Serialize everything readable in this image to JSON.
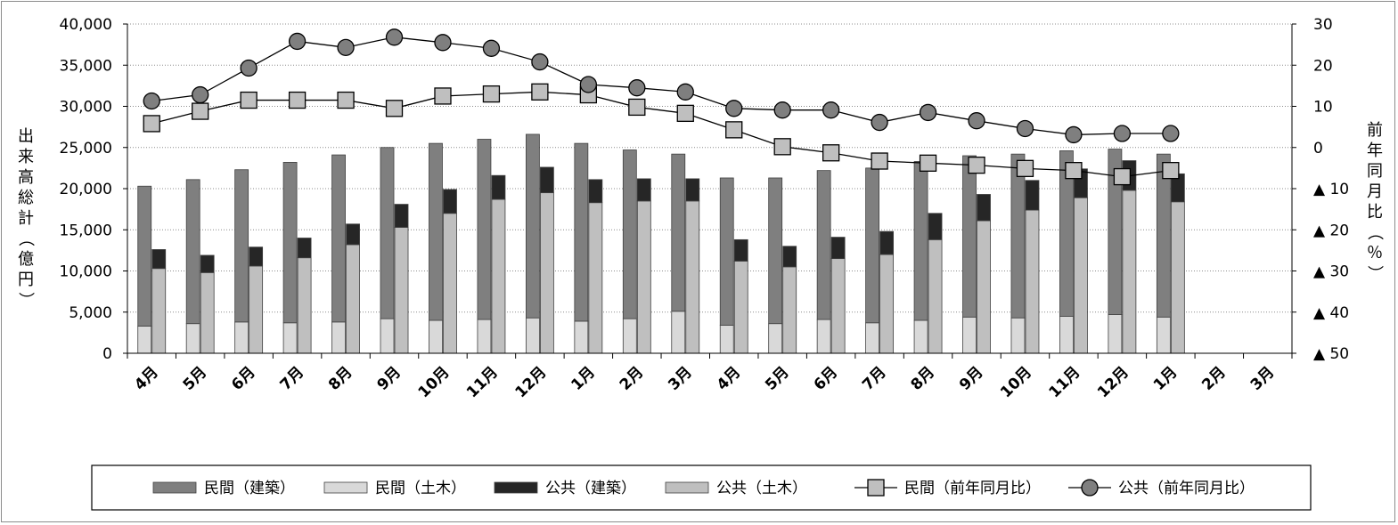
{
  "chart_data": {
    "type": "bar",
    "categories": [
      "4月",
      "5月",
      "6月",
      "7月",
      "8月",
      "9月",
      "10月",
      "11月",
      "12月",
      "1月",
      "2月",
      "3月",
      "4月",
      "5月",
      "6月",
      "7月",
      "8月",
      "9月",
      "10月",
      "11月",
      "12月",
      "1月",
      "2月",
      "3月"
    ],
    "left_axis": {
      "label": "出来高総計（億円）",
      "ylim": [
        0,
        40000
      ],
      "ticks": [
        0,
        5000,
        10000,
        15000,
        20000,
        25000,
        30000,
        35000,
        40000
      ],
      "tick_labels": [
        "0",
        "5,000",
        "10,000",
        "15,000",
        "20,000",
        "25,000",
        "30,000",
        "35,000",
        "40,000"
      ]
    },
    "right_axis": {
      "label": "前年同月比（％）",
      "ylim": [
        -50,
        30
      ],
      "ticks": [
        30,
        20,
        10,
        0,
        -10,
        -20,
        -30,
        -40,
        -50
      ],
      "tick_labels": [
        "30",
        "20",
        "10",
        "0",
        "▲ 10",
        "▲ 20",
        "▲ 30",
        "▲ 40",
        "▲ 50"
      ]
    },
    "series": [
      {
        "name": "民間（建築）",
        "type": "stacked-bar",
        "stack": "private",
        "color": "#7f7f7f",
        "values": [
          17000,
          17500,
          18500,
          19500,
          20300,
          20800,
          21500,
          21900,
          22300,
          21600,
          20500,
          19100,
          17900,
          17700,
          18100,
          18800,
          19300,
          19600,
          19900,
          20100,
          20100,
          19800,
          null,
          null
        ]
      },
      {
        "name": "民間（土木）",
        "type": "stacked-bar",
        "stack": "private",
        "color": "#d9d9d9",
        "values": [
          3300,
          3600,
          3800,
          3700,
          3800,
          4200,
          4000,
          4100,
          4300,
          3900,
          4200,
          5100,
          3400,
          3600,
          4100,
          3700,
          4000,
          4400,
          4300,
          4500,
          4700,
          4400,
          null,
          null
        ]
      },
      {
        "name": "公共（建築）",
        "type": "stacked-bar",
        "stack": "public",
        "color": "#262626",
        "values": [
          2300,
          2100,
          2300,
          2400,
          2500,
          2800,
          2900,
          2900,
          3100,
          2800,
          2700,
          2700,
          2600,
          2500,
          2600,
          2800,
          3200,
          3200,
          3600,
          3500,
          3600,
          3400,
          null,
          null
        ]
      },
      {
        "name": "公共（土木）",
        "type": "stacked-bar",
        "stack": "public",
        "color": "#bfbfbf",
        "values": [
          10300,
          9800,
          10600,
          11600,
          13200,
          15300,
          17000,
          18700,
          19500,
          18300,
          18500,
          18500,
          11200,
          10500,
          11500,
          12000,
          13800,
          16100,
          17400,
          18900,
          19800,
          18400,
          null,
          null
        ]
      },
      {
        "name": "民間（前年同月比）",
        "type": "line",
        "axis": "right",
        "marker": "square",
        "color": "#000000",
        "values": [
          5.8,
          8.8,
          11.5,
          11.5,
          11.5,
          9.5,
          12.5,
          13,
          13.5,
          12.8,
          9.8,
          8.3,
          4.3,
          0.2,
          -1.3,
          -3.3,
          -3.8,
          -4.3,
          -5.1,
          -5.6,
          -7.1,
          -5.6,
          null,
          null
        ]
      },
      {
        "name": "公共（前年同月比）",
        "type": "line",
        "axis": "right",
        "marker": "circle",
        "color": "#000000",
        "values": [
          11.3,
          12.8,
          19.3,
          25.8,
          24.3,
          26.8,
          25.5,
          24.1,
          20.8,
          15.3,
          14.5,
          13.5,
          9.5,
          9.1,
          9.1,
          6.1,
          8.5,
          6.5,
          4.6,
          3.1,
          3.4,
          3.4,
          null,
          null
        ]
      }
    ],
    "grid": true,
    "legend": "bottom",
    "legend_labels": [
      "民間（建築）",
      "民間（土木）",
      "公共（建築）",
      "公共（土木）",
      "民間（前年同月比）",
      "公共（前年同月比）"
    ]
  }
}
